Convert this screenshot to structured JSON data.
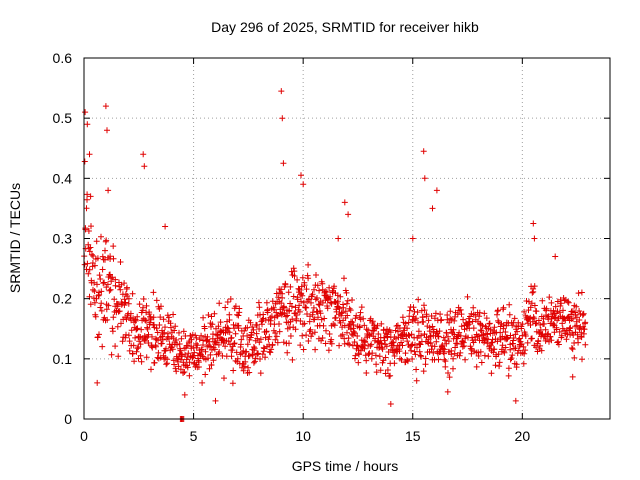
{
  "chart_data": {
    "type": "scatter",
    "title": "Day 296 of 2025, SRMTID for receiver hikb",
    "xlabel": "GPS time / hours",
    "ylabel": "SRMTID / TECUs",
    "xlim": [
      0,
      24
    ],
    "ylim": [
      0,
      0.6
    ],
    "x_ticks": [
      0,
      5,
      10,
      15,
      20
    ],
    "x_tick_labels": [
      "0",
      "5",
      "10",
      "15",
      "20"
    ],
    "y_ticks": [
      0,
      0.1,
      0.2,
      0.3,
      0.4,
      0.5,
      0.6
    ],
    "y_tick_labels": [
      "0",
      "0.1",
      "0.2",
      "0.3",
      "0.4",
      "0.5",
      "0.6"
    ],
    "grid": true,
    "marker": "plus",
    "colors": {
      "series": "#e00000",
      "grid": "#a0a0a0",
      "axis": "#000000"
    },
    "series": [
      {
        "name": "SRMTID",
        "envelope_hours": [
          0,
          0.25,
          0.5,
          1.0,
          1.5,
          2.0,
          2.5,
          3.0,
          3.5,
          4.0,
          4.5,
          5.0,
          5.5,
          6.0,
          6.5,
          7.0,
          7.5,
          8.0,
          8.5,
          9.0,
          9.5,
          10.0,
          10.5,
          11.0,
          11.5,
          12.0,
          12.5,
          13.0,
          13.5,
          14.0,
          14.5,
          15.0,
          15.5,
          16.0,
          16.5,
          17.0,
          17.5,
          18.0,
          18.5,
          19.0,
          19.5,
          20.0,
          20.5,
          21.0,
          21.5,
          22.0,
          22.5,
          22.9
        ],
        "envelope_center_tecu": [
          0.3,
          0.28,
          0.22,
          0.22,
          0.19,
          0.17,
          0.14,
          0.15,
          0.14,
          0.13,
          0.11,
          0.11,
          0.12,
          0.13,
          0.14,
          0.13,
          0.12,
          0.13,
          0.15,
          0.2,
          0.18,
          0.19,
          0.18,
          0.19,
          0.18,
          0.16,
          0.14,
          0.13,
          0.13,
          0.12,
          0.13,
          0.14,
          0.15,
          0.13,
          0.12,
          0.15,
          0.14,
          0.15,
          0.14,
          0.13,
          0.13,
          0.13,
          0.17,
          0.15,
          0.16,
          0.16,
          0.15,
          0.16
        ],
        "envelope_spread_tecu": [
          0.12,
          0.1,
          0.09,
          0.09,
          0.08,
          0.08,
          0.06,
          0.07,
          0.06,
          0.05,
          0.04,
          0.04,
          0.05,
          0.05,
          0.06,
          0.06,
          0.05,
          0.06,
          0.06,
          0.07,
          0.07,
          0.07,
          0.07,
          0.06,
          0.06,
          0.06,
          0.05,
          0.05,
          0.05,
          0.05,
          0.05,
          0.06,
          0.06,
          0.05,
          0.05,
          0.06,
          0.05,
          0.05,
          0.05,
          0.05,
          0.05,
          0.05,
          0.06,
          0.05,
          0.05,
          0.05,
          0.05,
          0.05
        ],
        "spikes": [
          {
            "x": 0.05,
            "y": 0.51
          },
          {
            "x": 0.15,
            "y": 0.49
          },
          {
            "x": 0.25,
            "y": 0.44
          },
          {
            "x": 0.3,
            "y": 0.37
          },
          {
            "x": 1.0,
            "y": 0.52
          },
          {
            "x": 1.05,
            "y": 0.48
          },
          {
            "x": 1.1,
            "y": 0.38
          },
          {
            "x": 2.7,
            "y": 0.44
          },
          {
            "x": 2.75,
            "y": 0.42
          },
          {
            "x": 3.7,
            "y": 0.32
          },
          {
            "x": 9.0,
            "y": 0.545
          },
          {
            "x": 9.05,
            "y": 0.5
          },
          {
            "x": 9.1,
            "y": 0.425
          },
          {
            "x": 9.9,
            "y": 0.405
          },
          {
            "x": 10.0,
            "y": 0.39
          },
          {
            "x": 11.6,
            "y": 0.3
          },
          {
            "x": 11.9,
            "y": 0.36
          },
          {
            "x": 12.05,
            "y": 0.34
          },
          {
            "x": 15.0,
            "y": 0.3
          },
          {
            "x": 15.5,
            "y": 0.445
          },
          {
            "x": 15.55,
            "y": 0.4
          },
          {
            "x": 15.9,
            "y": 0.35
          },
          {
            "x": 16.1,
            "y": 0.38
          },
          {
            "x": 20.5,
            "y": 0.325
          },
          {
            "x": 20.55,
            "y": 0.3
          },
          {
            "x": 21.5,
            "y": 0.27
          }
        ],
        "lows": [
          {
            "x": 0.6,
            "y": 0.06
          },
          {
            "x": 4.4,
            "y": 0.0
          },
          {
            "x": 4.45,
            "y": 0.0
          },
          {
            "x": 4.5,
            "y": 0.0
          },
          {
            "x": 4.55,
            "y": 0.0
          },
          {
            "x": 4.6,
            "y": 0.04
          },
          {
            "x": 6.0,
            "y": 0.03
          },
          {
            "x": 14.0,
            "y": 0.025
          },
          {
            "x": 19.7,
            "y": 0.03
          },
          {
            "x": 16.6,
            "y": 0.045
          },
          {
            "x": 22.3,
            "y": 0.07
          }
        ]
      }
    ]
  }
}
